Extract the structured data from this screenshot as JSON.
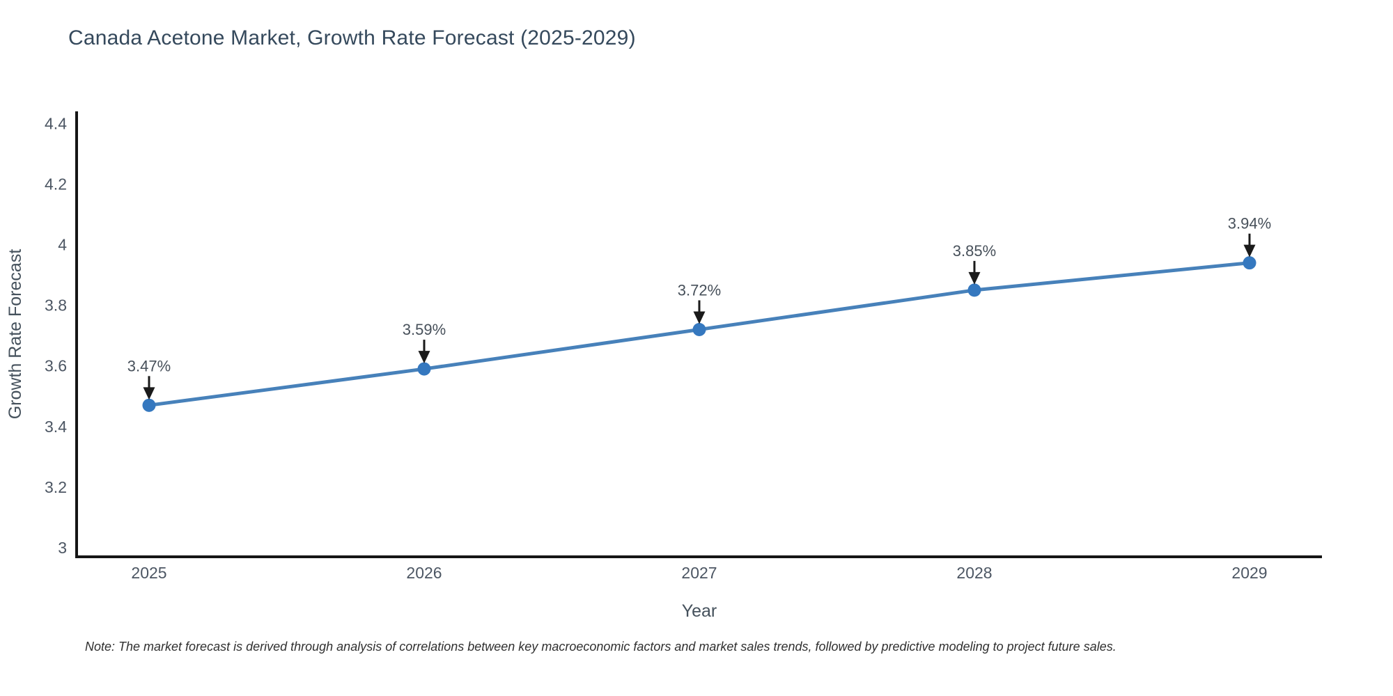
{
  "chart_data": {
    "type": "line",
    "title": "Canada Acetone Market, Growth Rate Forecast (2025-2029)",
    "xlabel": "Year",
    "ylabel": "Growth Rate Forecast",
    "categories": [
      "2025",
      "2026",
      "2027",
      "2028",
      "2029"
    ],
    "series": [
      {
        "name": "Growth Rate Forecast",
        "values": [
          3.47,
          3.59,
          3.72,
          3.85,
          3.94
        ],
        "point_labels": [
          "3.47%",
          "3.59%",
          "3.72%",
          "3.85%",
          "3.94%"
        ]
      }
    ],
    "yticks": [
      "3",
      "3.2",
      "3.4",
      "3.6",
      "3.8",
      "4",
      "4.2",
      "4.4"
    ],
    "ytick_values": [
      3,
      3.2,
      3.4,
      3.6,
      3.8,
      4,
      4.2,
      4.4
    ],
    "ylim": [
      2.97,
      4.44
    ],
    "grid": false,
    "legend": null,
    "note": "Note: The market forecast is derived through analysis of correlations between key macroeconomic factors and market sales trends, followed by predictive modeling to project future sales.",
    "colors": {
      "line": "#4781ba",
      "marker": "#3578bf",
      "annotation_arrow": "#1a1a1a",
      "annotation_text": "#47505a",
      "axis_line": "#151515",
      "tick_label": "#4c5663",
      "axis_title": "#45515c",
      "title_text": "#35495c",
      "note_text": "#303030",
      "background": "#ffffff"
    }
  }
}
